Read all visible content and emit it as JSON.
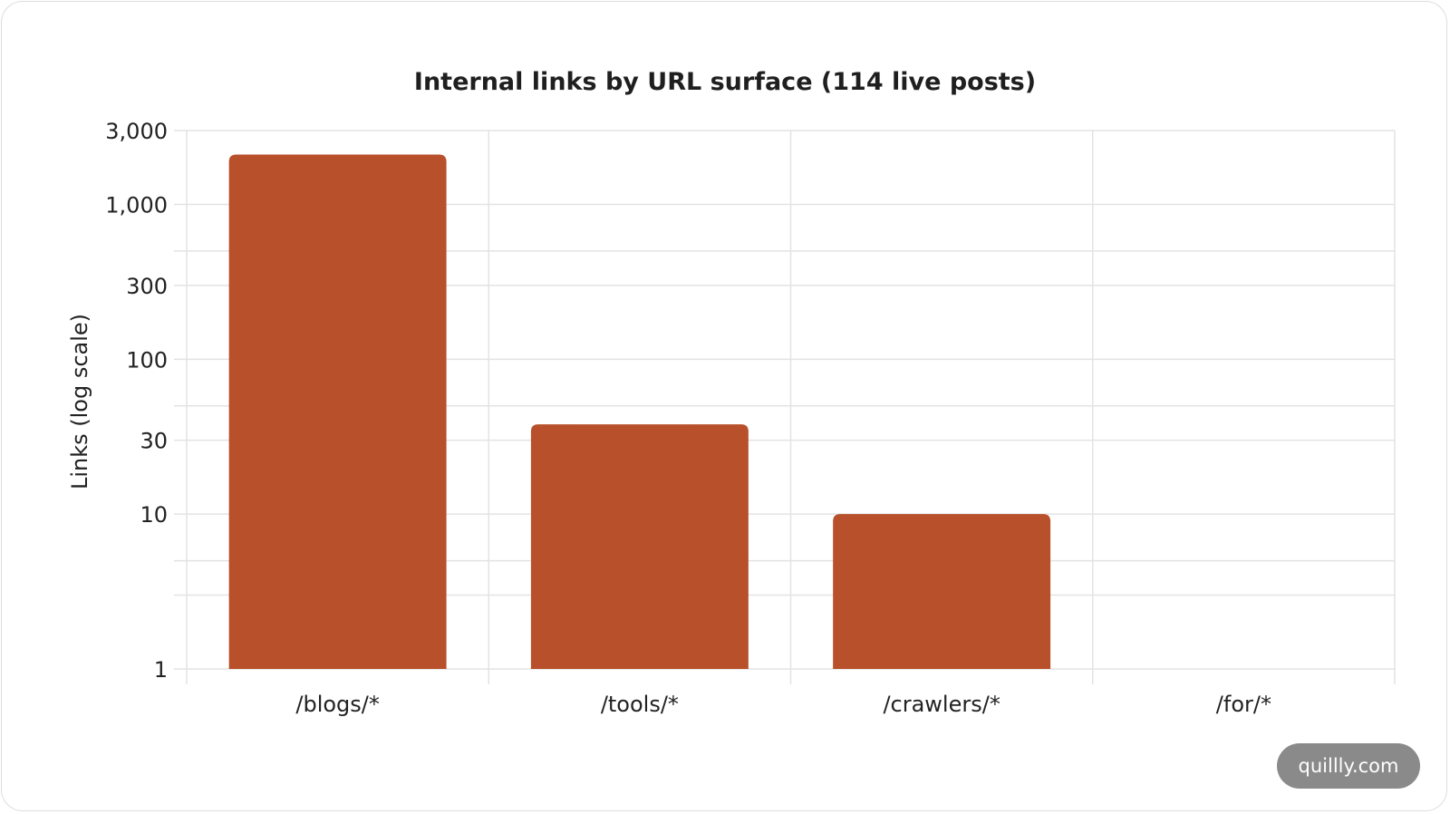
{
  "chart_data": {
    "type": "bar",
    "title": "Internal links by URL surface (114 live posts)",
    "xlabel": "",
    "ylabel": "Links (log scale)",
    "yscale": "log",
    "ylim": [
      1,
      3000
    ],
    "y_ticks": [
      1,
      10,
      30,
      100,
      300,
      1000,
      3000
    ],
    "y_tick_labels": [
      "1",
      "10",
      "30",
      "100",
      "300",
      "1,000",
      "3,000"
    ],
    "categories": [
      "/blogs/*",
      "/tools/*",
      "/crawlers/*",
      "/for/*"
    ],
    "values": [
      2100,
      38,
      10,
      0
    ],
    "bar_color": "#b8502b",
    "grid": true,
    "legend": "none"
  },
  "watermark": {
    "text": "quillly.com"
  }
}
